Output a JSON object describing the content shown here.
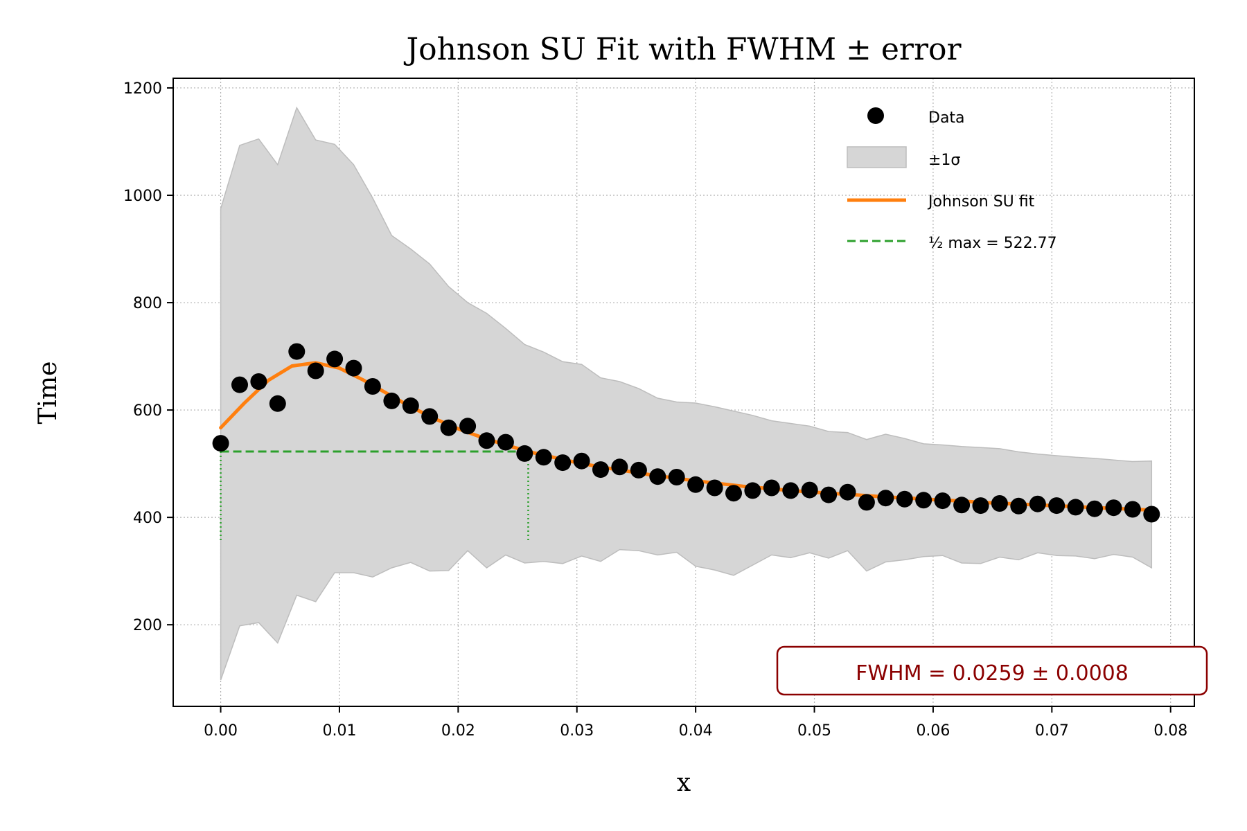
{
  "chart_data": {
    "type": "scatter",
    "title": "Johnson SU Fit with FWHM ± error",
    "xlabel": "x",
    "ylabel": "Time",
    "xlim": [
      -0.004,
      0.082
    ],
    "ylim": [
      48,
      1218
    ],
    "x_ticks": [
      0.0,
      0.01,
      0.02,
      0.03,
      0.04,
      0.05,
      0.06,
      0.07,
      0.08
    ],
    "x_tick_labels": [
      "0.00",
      "0.01",
      "0.02",
      "0.03",
      "0.04",
      "0.05",
      "0.06",
      "0.07",
      "0.08"
    ],
    "y_ticks": [
      200,
      400,
      600,
      800,
      1000,
      1200
    ],
    "y_tick_labels": [
      "200",
      "400",
      "600",
      "800",
      "1000",
      "1200"
    ],
    "grid": true,
    "legend_position": "top-right",
    "legend": {
      "data": "Data",
      "band": "±1σ",
      "fit": "Johnson SU fit",
      "half_max": "½ max = 522.77"
    },
    "annotation": "FWHM = 0.0259 ± 0.0008",
    "colors": {
      "data": "#000000",
      "band": "#d6d6d6",
      "band_edge": "#bdbdbd",
      "fit": "#ff7f0e",
      "half_max": "#2ca02c",
      "annotation": "#8b0000",
      "grid": "#b0b0b0"
    },
    "series": [
      {
        "name": "Data",
        "x": [
          0.0,
          0.0016,
          0.0032,
          0.0048,
          0.0064,
          0.008,
          0.0096,
          0.0112,
          0.0128,
          0.0144,
          0.016,
          0.0176,
          0.0192,
          0.0208,
          0.0224,
          0.024,
          0.0256,
          0.0272,
          0.0288,
          0.0304,
          0.032,
          0.0336,
          0.0352,
          0.0368,
          0.0384,
          0.04,
          0.0416,
          0.0432,
          0.0448,
          0.0464,
          0.048,
          0.0496,
          0.0512,
          0.0528,
          0.0544,
          0.056,
          0.0576,
          0.0592,
          0.0608,
          0.0624,
          0.064,
          0.0656,
          0.0672,
          0.0688,
          0.0704,
          0.072,
          0.0736,
          0.0752,
          0.0768,
          0.0784
        ],
        "y": [
          538,
          647,
          653,
          612,
          709,
          673,
          695,
          678,
          644,
          617,
          608,
          588,
          567,
          570,
          543,
          540,
          519,
          512,
          502,
          505,
          489,
          494,
          488,
          476,
          475,
          461,
          455,
          445,
          450,
          455,
          450,
          451,
          442,
          447,
          428,
          436,
          434,
          432,
          431,
          423,
          422,
          426,
          421,
          425,
          422,
          419,
          416,
          418,
          415,
          406
        ]
      },
      {
        "name": "±1σ",
        "x": [
          0.0,
          0.0016,
          0.0032,
          0.0048,
          0.0064,
          0.008,
          0.0096,
          0.0112,
          0.0128,
          0.0144,
          0.016,
          0.0176,
          0.0192,
          0.0208,
          0.0224,
          0.024,
          0.0256,
          0.0272,
          0.0288,
          0.0304,
          0.032,
          0.0336,
          0.0352,
          0.0368,
          0.0384,
          0.04,
          0.0416,
          0.0432,
          0.0448,
          0.0464,
          0.048,
          0.0496,
          0.0512,
          0.0528,
          0.0544,
          0.056,
          0.0576,
          0.0592,
          0.0608,
          0.0624,
          0.064,
          0.0656,
          0.0672,
          0.0688,
          0.0704,
          0.072,
          0.0736,
          0.0752,
          0.0768,
          0.0784
        ],
        "upper": [
          975,
          1093,
          1105,
          1057,
          1163,
          1103,
          1095,
          1057,
          995,
          925,
          900,
          872,
          830,
          800,
          780,
          752,
          722,
          708,
          690,
          685,
          660,
          653,
          640,
          622,
          615,
          613,
          606,
          598,
          590,
          580,
          575,
          570,
          560,
          558,
          545,
          555,
          547,
          537,
          535,
          532,
          530,
          528,
          522,
          518,
          515,
          512,
          510,
          507,
          504,
          505
        ],
        "lower": [
          97,
          198,
          204,
          166,
          255,
          243,
          297,
          297,
          289,
          306,
          316,
          300,
          301,
          338,
          306,
          330,
          315,
          318,
          314,
          328,
          318,
          340,
          338,
          330,
          335,
          309,
          302,
          292,
          311,
          330,
          325,
          334,
          324,
          338,
          300,
          317,
          321,
          327,
          329,
          315,
          314,
          326,
          321,
          334,
          329,
          328,
          323,
          331,
          326,
          306
        ]
      },
      {
        "name": "Johnson SU fit",
        "x": [
          0.0,
          0.002,
          0.004,
          0.006,
          0.008,
          0.01,
          0.012,
          0.014,
          0.016,
          0.018,
          0.02,
          0.022,
          0.024,
          0.026,
          0.028,
          0.03,
          0.032,
          0.034,
          0.036,
          0.038,
          0.04,
          0.042,
          0.044,
          0.046,
          0.048,
          0.05,
          0.052,
          0.054,
          0.056,
          0.058,
          0.06,
          0.062,
          0.064,
          0.066,
          0.068,
          0.07,
          0.072,
          0.074,
          0.076,
          0.078
        ],
        "y": [
          567,
          613,
          655,
          682,
          688,
          678,
          656,
          631,
          606,
          584,
          565,
          549,
          535,
          522,
          512,
          502,
          494,
          487,
          480,
          474,
          468,
          463,
          458,
          454,
          450,
          447,
          444,
          441,
          438,
          436,
          433,
          431,
          428,
          426,
          424,
          422,
          420,
          418,
          416,
          414
        ]
      }
    ],
    "half_max": {
      "value": 522.77,
      "x_left": 0.0,
      "x_right": 0.0259,
      "marker_bottom": 355
    }
  }
}
